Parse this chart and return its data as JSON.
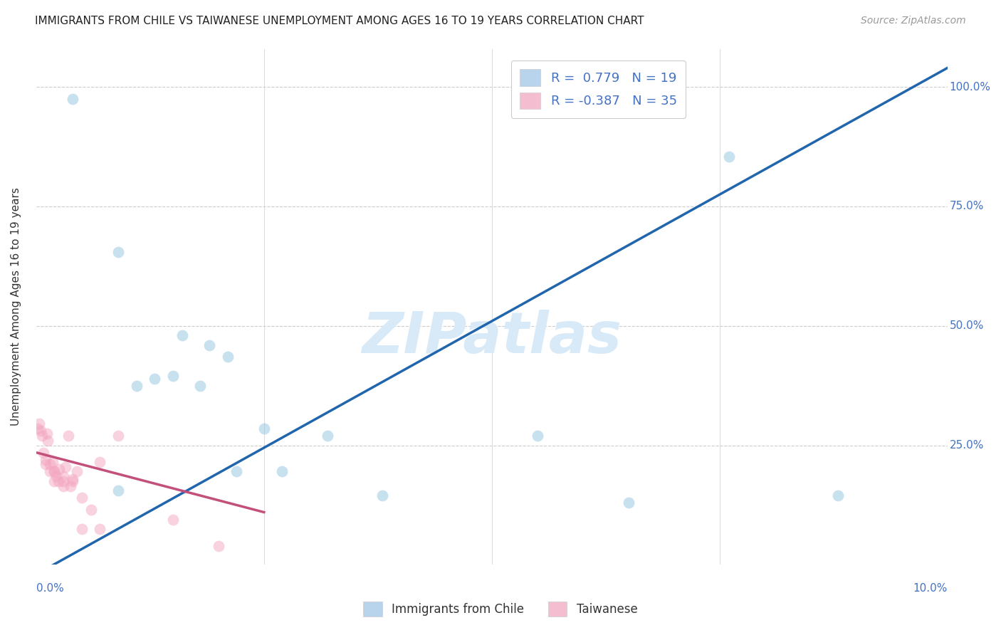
{
  "title": "IMMIGRANTS FROM CHILE VS TAIWANESE UNEMPLOYMENT AMONG AGES 16 TO 19 YEARS CORRELATION CHART",
  "source": "Source: ZipAtlas.com",
  "ylabel": "Unemployment Among Ages 16 to 19 years",
  "watermark": "ZIPatlas",
  "blue_scatter_x": [
    0.004,
    0.009,
    0.011,
    0.013,
    0.015,
    0.018,
    0.019,
    0.021,
    0.022,
    0.025,
    0.027,
    0.032,
    0.038,
    0.055,
    0.065,
    0.076,
    0.009,
    0.088,
    0.016
  ],
  "blue_scatter_y": [
    0.975,
    0.655,
    0.375,
    0.39,
    0.395,
    0.375,
    0.46,
    0.435,
    0.195,
    0.285,
    0.195,
    0.27,
    0.145,
    0.27,
    0.13,
    0.855,
    0.155,
    0.145,
    0.48
  ],
  "pink_scatter_x": [
    0.0002,
    0.0003,
    0.0005,
    0.0006,
    0.0008,
    0.001,
    0.001,
    0.0012,
    0.0013,
    0.0015,
    0.0015,
    0.0018,
    0.002,
    0.002,
    0.002,
    0.0022,
    0.0024,
    0.0025,
    0.003,
    0.003,
    0.003,
    0.0032,
    0.0035,
    0.0038,
    0.004,
    0.004,
    0.0045,
    0.005,
    0.005,
    0.006,
    0.007,
    0.007,
    0.009,
    0.015,
    0.02
  ],
  "pink_scatter_y": [
    0.285,
    0.295,
    0.28,
    0.27,
    0.235,
    0.21,
    0.22,
    0.275,
    0.26,
    0.21,
    0.195,
    0.215,
    0.195,
    0.175,
    0.195,
    0.185,
    0.175,
    0.2,
    0.185,
    0.175,
    0.165,
    0.205,
    0.27,
    0.165,
    0.175,
    0.18,
    0.195,
    0.14,
    0.075,
    0.115,
    0.075,
    0.215,
    0.27,
    0.095,
    0.04
  ],
  "blue_line_x": [
    0.0,
    0.1
  ],
  "blue_line_y": [
    -0.02,
    1.04
  ],
  "pink_line_x": [
    0.0,
    0.025
  ],
  "pink_line_y": [
    0.235,
    0.11
  ],
  "xlim": [
    0.0,
    0.1
  ],
  "ylim": [
    0.0,
    1.08
  ],
  "right_y_ticks": [
    1.0,
    0.75,
    0.5,
    0.25
  ],
  "right_y_labels": [
    "100.0%",
    "75.0%",
    "50.0%",
    "25.0%"
  ],
  "x_tick_positions": [
    0.0,
    0.025,
    0.05,
    0.075,
    0.1
  ],
  "scatter_size": 130,
  "scatter_alpha": 0.5,
  "blue_color": "#92c5de",
  "pink_color": "#f4a6c0",
  "blue_line_color": "#2166ac",
  "pink_line_color": "#c2507a",
  "grid_color": "#cccccc",
  "background_color": "#ffffff",
  "title_fontsize": 11,
  "source_fontsize": 10,
  "watermark_fontsize": 58,
  "watermark_color": "#d8eaf8",
  "axis_label_color_blue": "#4472c4",
  "legend_patch_blue": "#b8d4ed",
  "legend_patch_pink": "#f5bdd0"
}
